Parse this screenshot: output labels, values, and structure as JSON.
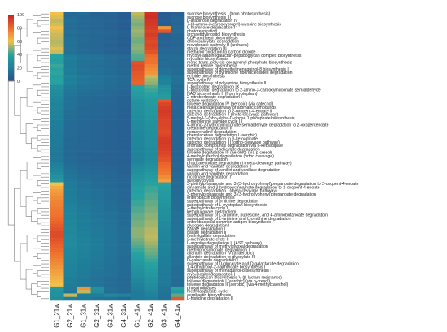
{
  "chart_data": {
    "type": "heatmap",
    "title": "",
    "xlabel": "",
    "ylabel": "",
    "columns": [
      "G1_21w",
      "G2_21w",
      "G1_31w",
      "G2_31w",
      "G3_31w",
      "G4_31w",
      "G1_41w",
      "G2_41w",
      "G3_41w",
      "G4_41w"
    ],
    "rows": [
      "sucrose biosynthesis I (from photosynthesis)",
      "sucrose biosynthesis III",
      "L-arabinose degradation IV",
      "7-(3-amino-3-carboxypropyl)-wyosine biosynthesis",
      "L-rhamnose degradation I",
      "photorespiration",
      "archaetidylinositol biosynthesis",
      "CDP-archaeol biosynthesis",
      "chlorosalicylate degradation",
      "mevalonate pathway II (archaea)",
      "starch degradation III",
      "methanol oxidation to carbon dioxide",
      "mycolyl-arabinogalactan-peptidoglycan complex biosynthesis",
      "mycolate biosynthesis",
      "mono-trans, poly-cis decaprenyl phosphate biosynthesis",
      "methyl ketone biosynthesis",
      "superpathway of demethylmenaquinol-8 biosynthesis II",
      "superpathway of pyrimidine ribonucleosides degradation",
      "ectoine biosynthesis",
      "TCA cycle IV",
      "superpathway of polyamine biosynthesis III",
      "L-tryptophan degradation IX",
      "L-tryptophan degradation to 2-amino-3-carboxymuconate semialdehyde",
      "NAD biosynthesis II (from tryptophan)",
      "2-nitrobenzoate degradation I",
      "octane oxidation",
      "toluene degradation IV (aerobic) (via catechol)",
      "meta cleavage pathway of aromatic compounds",
      "catechol degradation to 2-oxopent-4-enoate II",
      "catechol degradation II (meta-cleavage pathway)",
      "5-methyl-3-(pho-alpha-D-ribose 1-phosphate biosynthesis",
      "L-methionine salvage cycle III",
      "4-amino-2-hydroxymuconate semialdehyde degradation to 2-oxopentenoate",
      "creatinine degradation II",
      "noradrenaline degradation",
      "phenylacetate degradation I (aerobic)",
      "catechol degradation to &beta;-ketoadipate",
      "catechol degradation III (ortho-cleavage pathway)",
      "aromatic compounds degradation via &beta;-ketoadipate",
      "superpathway of salicylate degradation",
      "toluene degradation III (aerobic) (via p-cresol)",
      "4-methylcatechol degradation (ortho cleavage)",
      "syringate degradation",
      "protocatechuate degradation I (meta-cleavage pathway)",
      "vanillin and vanillate degradation II",
      "superpathway of vanillin and vanillate degradation",
      "vanillin and vanillate degradation I",
      "nicotinate degradation I",
      "sulfoglycolysis",
      "3-phenylpropanoate and 3-(3-hydroxyphenyl)propanoate degradation to 2-oxopent-4-enoate",
      "cinnamate and 3-hydroxycinnamate degradation to 2-oxopent-4-enoate",
      "catechol degradation I (meta-cleavage pathway)",
      "3-phenylpropanoate and 3-(3-hydroxyphenyl)propanoate degradation",
      "enterobactin biosynthesis",
      "superpathway of ornithine degradation",
      "superpathway of L-tryptophan biosynthesis",
      "2-methylcitrate cycle I",
      "ketogluconate metabolism",
      "superpathway of L-arginine, putrescine, and 4-aminobutanoate degradation",
      "superpathway of L-arginine and L-ornithine degradation",
      "enterobacterial common antigen biosynthesis",
      "glycogen degradation I",
      "gallate degradation I",
      "gallate degradation II",
      "methylgallate degradation",
      "2-methylcitrate cycle II",
      "L-arginine degradation II (AST pathway)",
      "superpathway of methylglyoxal degradation",
      "methylphosphonate degradation I",
      "allantoin degradation IV (anaerobic)",
      "allantoin degradation to glyoxylate III",
      "D-galactarate degradation I",
      "superpathway of D-glucarate and D-galactarate degradation",
      "1,4-dihydroxy-2-naphthoate biosynthesis I",
      "superpathway of menaquinol-8 biosynthesis I",
      "myo-inositol degradation I",
      "peptidoglycan biosynthesis V (&beta;-lactam resistance)",
      "toluene degradation I (aerobic) (via o-cresol)",
      "toluene degradation II (aerobic) (via 4-methylcatechol)",
      "phospholipases",
      "methylaspartate cycle",
      "aerobactin biosynthesis",
      "L-histidine degradation II"
    ],
    "values": [
      [
        60,
        10,
        12,
        8,
        9,
        6,
        55,
        95,
        5,
        8
      ],
      [
        58,
        12,
        10,
        9,
        8,
        6,
        52,
        96,
        6,
        9
      ],
      [
        55,
        14,
        12,
        10,
        9,
        7,
        50,
        94,
        7,
        10
      ],
      [
        57,
        13,
        11,
        10,
        8,
        6,
        48,
        93,
        6,
        9
      ],
      [
        60,
        12,
        10,
        9,
        8,
        6,
        50,
        92,
        70,
        10
      ],
      [
        58,
        14,
        12,
        11,
        9,
        7,
        52,
        90,
        85,
        12
      ],
      [
        56,
        13,
        11,
        10,
        9,
        7,
        50,
        92,
        8,
        10
      ],
      [
        55,
        14,
        12,
        10,
        8,
        6,
        48,
        90,
        8,
        9
      ],
      [
        54,
        15,
        12,
        10,
        9,
        7,
        47,
        88,
        9,
        10
      ],
      [
        55,
        14,
        11,
        10,
        8,
        6,
        49,
        90,
        8,
        9
      ],
      [
        58,
        15,
        12,
        10,
        9,
        7,
        50,
        88,
        10,
        11
      ],
      [
        56,
        14,
        12,
        10,
        8,
        7,
        48,
        86,
        10,
        10
      ],
      [
        40,
        18,
        15,
        14,
        12,
        10,
        45,
        80,
        12,
        12
      ],
      [
        38,
        20,
        16,
        15,
        13,
        10,
        44,
        78,
        12,
        13
      ],
      [
        39,
        19,
        15,
        14,
        12,
        10,
        86,
        78,
        13,
        12
      ],
      [
        42,
        18,
        14,
        13,
        12,
        9,
        88,
        75,
        12,
        11
      ],
      [
        40,
        20,
        16,
        14,
        13,
        11,
        87,
        72,
        14,
        13
      ],
      [
        41,
        19,
        15,
        14,
        12,
        10,
        85,
        70,
        15,
        12
      ],
      [
        38,
        22,
        18,
        16,
        14,
        12,
        84,
        55,
        20,
        15
      ],
      [
        40,
        20,
        16,
        15,
        13,
        11,
        83,
        52,
        22,
        14
      ],
      [
        39,
        21,
        17,
        15,
        13,
        11,
        82,
        50,
        22,
        14
      ],
      [
        30,
        18,
        15,
        14,
        12,
        10,
        40,
        45,
        30,
        12
      ],
      [
        28,
        17,
        14,
        13,
        11,
        9,
        38,
        42,
        32,
        12
      ],
      [
        27,
        16,
        13,
        12,
        11,
        9,
        36,
        40,
        34,
        11
      ],
      [
        25,
        15,
        12,
        11,
        10,
        8,
        34,
        38,
        36,
        10
      ],
      [
        24,
        15,
        12,
        11,
        10,
        8,
        32,
        36,
        85,
        10
      ],
      [
        22,
        14,
        12,
        10,
        9,
        8,
        30,
        35,
        90,
        10
      ],
      [
        23,
        14,
        11,
        10,
        9,
        8,
        30,
        34,
        92,
        10
      ],
      [
        22,
        13,
        11,
        10,
        9,
        7,
        29,
        33,
        93,
        9
      ],
      [
        22,
        13,
        11,
        10,
        9,
        7,
        28,
        33,
        92,
        9
      ],
      [
        21,
        13,
        11,
        10,
        9,
        7,
        28,
        32,
        91,
        9
      ],
      [
        20,
        12,
        10,
        9,
        8,
        7,
        27,
        31,
        90,
        9
      ],
      [
        20,
        12,
        10,
        9,
        8,
        7,
        26,
        30,
        90,
        9
      ],
      [
        19,
        12,
        10,
        9,
        8,
        7,
        26,
        30,
        89,
        9
      ],
      [
        19,
        12,
        10,
        9,
        8,
        7,
        25,
        29,
        88,
        9
      ],
      [
        18,
        12,
        10,
        9,
        8,
        7,
        25,
        29,
        90,
        9
      ],
      [
        18,
        11,
        10,
        9,
        8,
        7,
        24,
        28,
        92,
        9
      ],
      [
        18,
        11,
        10,
        9,
        8,
        7,
        24,
        28,
        93,
        9
      ],
      [
        18,
        11,
        10,
        9,
        8,
        7,
        24,
        28,
        92,
        9
      ],
      [
        17,
        11,
        10,
        9,
        8,
        7,
        23,
        27,
        91,
        9
      ],
      [
        17,
        11,
        9,
        9,
        8,
        7,
        23,
        27,
        90,
        9
      ],
      [
        17,
        11,
        9,
        8,
        8,
        7,
        22,
        26,
        88,
        9
      ],
      [
        17,
        11,
        9,
        8,
        8,
        7,
        22,
        26,
        86,
        9
      ],
      [
        20,
        12,
        10,
        9,
        8,
        7,
        24,
        28,
        82,
        10
      ],
      [
        22,
        13,
        11,
        10,
        9,
        8,
        26,
        30,
        80,
        10
      ],
      [
        24,
        14,
        12,
        10,
        9,
        8,
        28,
        32,
        78,
        10
      ],
      [
        26,
        15,
        12,
        11,
        10,
        8,
        30,
        34,
        76,
        11
      ],
      [
        30,
        16,
        13,
        12,
        10,
        9,
        32,
        36,
        72,
        11
      ],
      [
        34,
        17,
        14,
        12,
        11,
        9,
        34,
        38,
        68,
        12
      ],
      [
        60,
        18,
        15,
        13,
        11,
        9,
        36,
        40,
        40,
        12
      ],
      [
        65,
        18,
        15,
        13,
        11,
        9,
        38,
        42,
        38,
        12
      ],
      [
        68,
        19,
        16,
        14,
        12,
        10,
        38,
        42,
        36,
        12
      ],
      [
        70,
        19,
        16,
        14,
        12,
        10,
        40,
        44,
        35,
        12
      ],
      [
        72,
        20,
        16,
        14,
        12,
        10,
        40,
        44,
        34,
        13
      ],
      [
        74,
        20,
        17,
        15,
        13,
        10,
        42,
        46,
        33,
        13
      ],
      [
        75,
        21,
        17,
        15,
        13,
        11,
        42,
        46,
        32,
        13
      ],
      [
        76,
        22,
        18,
        16,
        13,
        11,
        44,
        48,
        31,
        13
      ],
      [
        77,
        22,
        18,
        16,
        14,
        11,
        44,
        48,
        30,
        14
      ],
      [
        78,
        23,
        19,
        16,
        14,
        12,
        46,
        50,
        29,
        14
      ],
      [
        80,
        23,
        19,
        17,
        14,
        12,
        46,
        50,
        28,
        14
      ],
      [
        82,
        24,
        20,
        17,
        15,
        12,
        48,
        52,
        27,
        14
      ],
      [
        84,
        24,
        20,
        17,
        15,
        12,
        48,
        52,
        26,
        15
      ],
      [
        86,
        25,
        20,
        18,
        15,
        13,
        50,
        54,
        25,
        15
      ],
      [
        88,
        25,
        21,
        18,
        16,
        13,
        50,
        54,
        24,
        15
      ],
      [
        88,
        26,
        21,
        18,
        16,
        13,
        50,
        55,
        24,
        15
      ],
      [
        86,
        26,
        22,
        19,
        16,
        13,
        48,
        54,
        23,
        15
      ],
      [
        84,
        26,
        22,
        19,
        16,
        13,
        46,
        52,
        22,
        15
      ],
      [
        82,
        26,
        22,
        19,
        16,
        13,
        44,
        50,
        22,
        15
      ],
      [
        80,
        25,
        22,
        19,
        16,
        13,
        42,
        48,
        21,
        15
      ],
      [
        78,
        25,
        21,
        18,
        16,
        13,
        40,
        46,
        21,
        14
      ],
      [
        76,
        24,
        21,
        18,
        15,
        12,
        38,
        44,
        20,
        14
      ],
      [
        74,
        24,
        20,
        18,
        15,
        12,
        36,
        42,
        20,
        14
      ],
      [
        72,
        23,
        20,
        17,
        15,
        12,
        34,
        40,
        20,
        14
      ],
      [
        70,
        22,
        19,
        17,
        14,
        12,
        32,
        38,
        19,
        13
      ],
      [
        68,
        22,
        19,
        16,
        14,
        12,
        30,
        36,
        19,
        13
      ],
      [
        66,
        21,
        18,
        16,
        14,
        11,
        28,
        34,
        18,
        13
      ],
      [
        64,
        20,
        18,
        15,
        13,
        11,
        26,
        32,
        18,
        13
      ],
      [
        62,
        20,
        17,
        15,
        13,
        11,
        24,
        30,
        18,
        12
      ],
      [
        60,
        19,
        17,
        15,
        13,
        11,
        22,
        28,
        17,
        12
      ],
      [
        35,
        18,
        70,
        30,
        14,
        12,
        20,
        26,
        16,
        40
      ],
      [
        30,
        16,
        55,
        28,
        13,
        11,
        18,
        24,
        15,
        35
      ],
      [
        30,
        55,
        20,
        20,
        25,
        22,
        18,
        22,
        14,
        45
      ],
      [
        28,
        20,
        18,
        16,
        14,
        12,
        18,
        20,
        14,
        85
      ]
    ],
    "colorbar": {
      "ticks": [
        0,
        20,
        40,
        60,
        80,
        100
      ],
      "range": [
        0,
        100
      ],
      "colors": [
        "#2c4f8f",
        "#1f7f9a",
        "#26a2a0",
        "#f3c04a",
        "#ed6a2c",
        "#c51f24"
      ]
    },
    "legend_position": "top-left",
    "dendrogram": "rows"
  }
}
